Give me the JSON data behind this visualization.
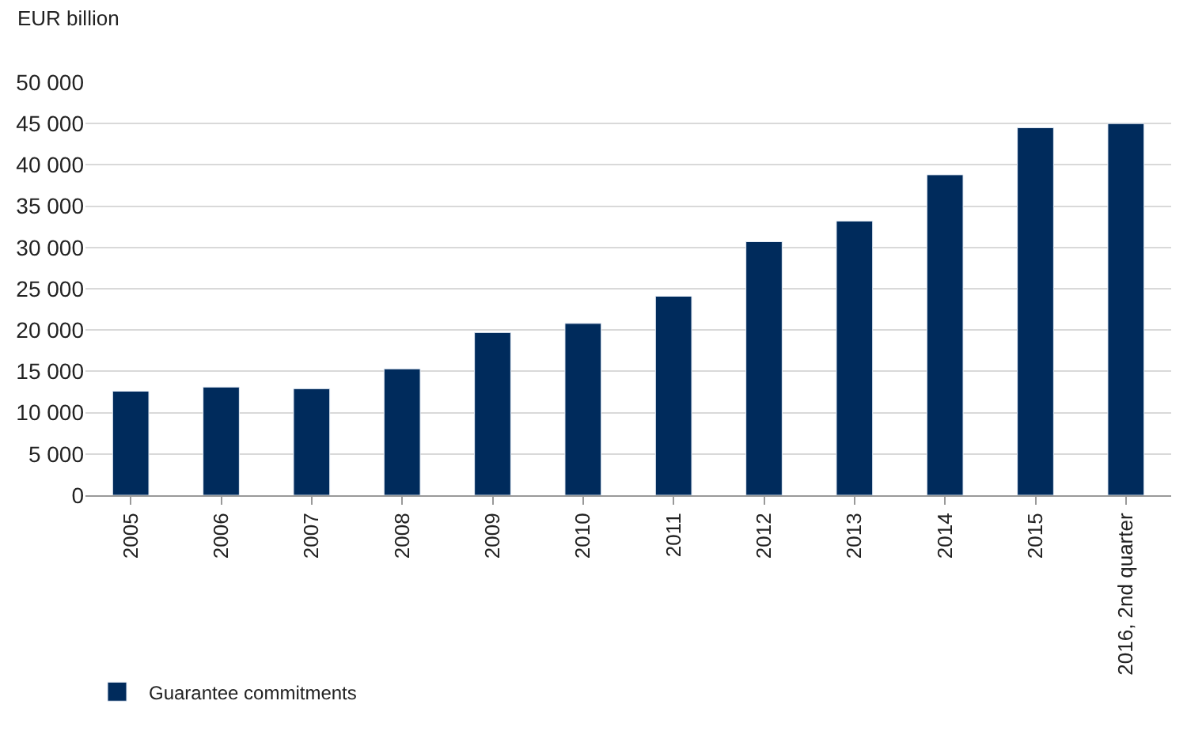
{
  "chart_data": {
    "type": "bar",
    "ylabel": "EUR billion",
    "categories": [
      "2005",
      "2006",
      "2007",
      "2008",
      "2009",
      "2010",
      "2011",
      "2012",
      "2013",
      "2014",
      "2015",
      "2016, 2nd quarter"
    ],
    "series": [
      {
        "name": "Guarantee commitments",
        "color": "#002b5c",
        "values": [
          12600,
          13100,
          12900,
          15300,
          19700,
          20800,
          24100,
          30700,
          33200,
          38800,
          44500,
          45000
        ]
      }
    ],
    "ylim": [
      0,
      50000
    ],
    "yticks": [
      0,
      {
        "value": 5000,
        "label": "5 000"
      },
      {
        "value": 10000,
        "label": "10 000"
      },
      {
        "value": 15000,
        "label": "15 000"
      },
      {
        "value": 20000,
        "label": "20 000"
      },
      {
        "value": 25000,
        "label": "25 000"
      },
      {
        "value": 30000,
        "label": "30 000"
      },
      {
        "value": 35000,
        "label": "35 000"
      },
      {
        "value": 40000,
        "label": "40 000"
      },
      {
        "value": 45000,
        "label": "45 000"
      },
      {
        "value": 50000,
        "label": "50 000"
      }
    ],
    "grid": "y",
    "legend": "bottom left"
  }
}
